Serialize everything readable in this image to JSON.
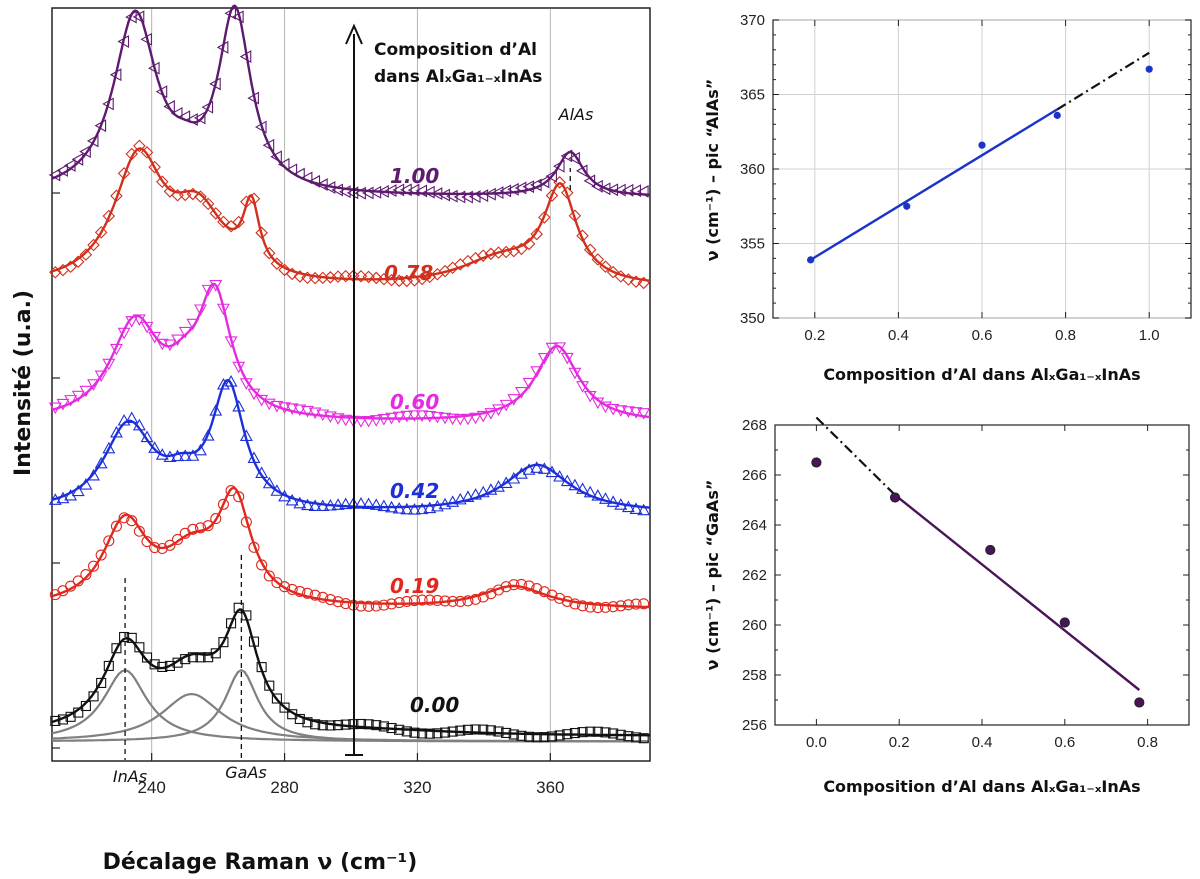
{
  "chart_data": [
    {
      "type": "line",
      "xlabel": "Décalage Raman ν (cm⁻¹)",
      "ylabel": "Intensité (u.a.)",
      "xlim": [
        210,
        390
      ],
      "xticks": [
        240,
        280,
        320,
        360
      ],
      "grid": "vertical",
      "arrow_label": [
        "Composition d’Al",
        "dans AlₓGa₁₋ₓInAs"
      ],
      "peak_labels": [
        "InAs",
        "GaAs",
        "AlAs"
      ],
      "series": [
        {
          "name": "0.00",
          "color": "#111111",
          "marker": "square",
          "peaks": [
            {
              "pos": 232,
              "amp": 0.48,
              "w": 8
            },
            {
              "pos": 252,
              "amp": 0.33,
              "w": 11
            },
            {
              "pos": 267,
              "amp": 0.6,
              "w": 6
            },
            {
              "pos": 310,
              "amp": 0.02,
              "w": 30
            }
          ]
        },
        {
          "name": "0.19",
          "color": "#e0281e",
          "marker": "circle",
          "peaks": [
            {
              "pos": 232,
              "amp": 0.48,
              "w": 8
            },
            {
              "pos": 252,
              "amp": 0.28,
              "w": 10
            },
            {
              "pos": 265,
              "amp": 0.58,
              "w": 6
            },
            {
              "pos": 349,
              "amp": 0.13,
              "w": 12
            }
          ]
        },
        {
          "name": "0.42",
          "color": "#1c2fd8",
          "marker": "triangle-up",
          "peaks": [
            {
              "pos": 233,
              "amp": 0.5,
              "w": 9
            },
            {
              "pos": 249,
              "amp": 0.12,
              "w": 6
            },
            {
              "pos": 263,
              "amp": 0.72,
              "w": 6
            },
            {
              "pos": 356,
              "amp": 0.28,
              "w": 12
            }
          ]
        },
        {
          "name": "0.60",
          "color": "#e52bdf",
          "marker": "triangle-down",
          "peaks": [
            {
              "pos": 235,
              "amp": 0.57,
              "w": 9
            },
            {
              "pos": 250,
              "amp": 0.15,
              "w": 6
            },
            {
              "pos": 259,
              "amp": 0.7,
              "w": 6
            },
            {
              "pos": 362,
              "amp": 0.45,
              "w": 8
            }
          ]
        },
        {
          "name": "0.78",
          "color": "#d1301c",
          "marker": "diamond",
          "peaks": [
            {
              "pos": 236,
              "amp": 0.72,
              "w": 9
            },
            {
              "pos": 254,
              "amp": 0.4,
              "w": 10
            },
            {
              "pos": 270,
              "amp": 0.38,
              "w": 3
            },
            {
              "pos": 363,
              "amp": 0.55,
              "w": 6
            },
            {
              "pos": 345,
              "amp": 0.15,
              "w": 15
            }
          ]
        },
        {
          "name": "1.00",
          "color": "#5e1a6e",
          "marker": "triangle-left",
          "peaks": [
            {
              "pos": 235,
              "amp": 1.05,
              "w": 8
            },
            {
              "pos": 265,
              "amp": 1.05,
              "w": 6
            },
            {
              "pos": 250,
              "amp": 0.08,
              "w": 5
            },
            {
              "pos": 366,
              "amp": 0.26,
              "w": 5
            }
          ]
        }
      ],
      "components": [
        {
          "name": "InAs",
          "pos": 232,
          "amp": 0.42,
          "w": 8
        },
        {
          "name": "",
          "pos": 252,
          "amp": 0.28,
          "w": 11
        },
        {
          "name": "GaAs",
          "pos": 267,
          "amp": 0.42,
          "w": 6
        }
      ]
    },
    {
      "type": "scatter",
      "xlabel": "Composition  d’Al dans AlₓGa₁₋ₓInAs",
      "ylabel": "ν (cm⁻¹) – pic “AlAs”",
      "xlim": [
        0.1,
        1.1
      ],
      "ylim": [
        350,
        370
      ],
      "xticks": [
        0.2,
        0.4,
        0.6,
        0.8,
        1.0
      ],
      "yticks": [
        350,
        355,
        360,
        365,
        370
      ],
      "grid": true,
      "points": {
        "x": [
          0.19,
          0.42,
          0.6,
          0.78,
          1.0
        ],
        "y": [
          353.9,
          357.5,
          361.6,
          363.6,
          366.7
        ]
      },
      "fit": {
        "x": [
          0.19,
          0.78
        ],
        "y": [
          353.9,
          364.0
        ]
      },
      "extrapolation": {
        "x": [
          0.78,
          1.0
        ],
        "y": [
          364.0,
          367.8
        ]
      },
      "color": "#1a34c8"
    },
    {
      "type": "scatter",
      "xlabel": "Composition  d’Al dans AlₓGa₁₋ₓInAs",
      "ylabel": "ν (cm⁻¹) – pic “GaAs”",
      "xlim": [
        -0.1,
        0.9
      ],
      "ylim": [
        256,
        268
      ],
      "xticks": [
        0.0,
        0.2,
        0.4,
        0.6,
        0.8
      ],
      "yticks": [
        256,
        258,
        260,
        262,
        264,
        266,
        268
      ],
      "grid": false,
      "points": {
        "x": [
          0.0,
          0.19,
          0.42,
          0.6,
          0.78
        ],
        "y": [
          266.5,
          265.1,
          263.0,
          260.1,
          256.9
        ]
      },
      "fit": {
        "x": [
          0.19,
          0.78
        ],
        "y": [
          265.2,
          257.4
        ]
      },
      "extrapolation": {
        "x": [
          0.0,
          0.19
        ],
        "y": [
          268.3,
          265.2
        ]
      },
      "color": "#4a1458"
    }
  ]
}
